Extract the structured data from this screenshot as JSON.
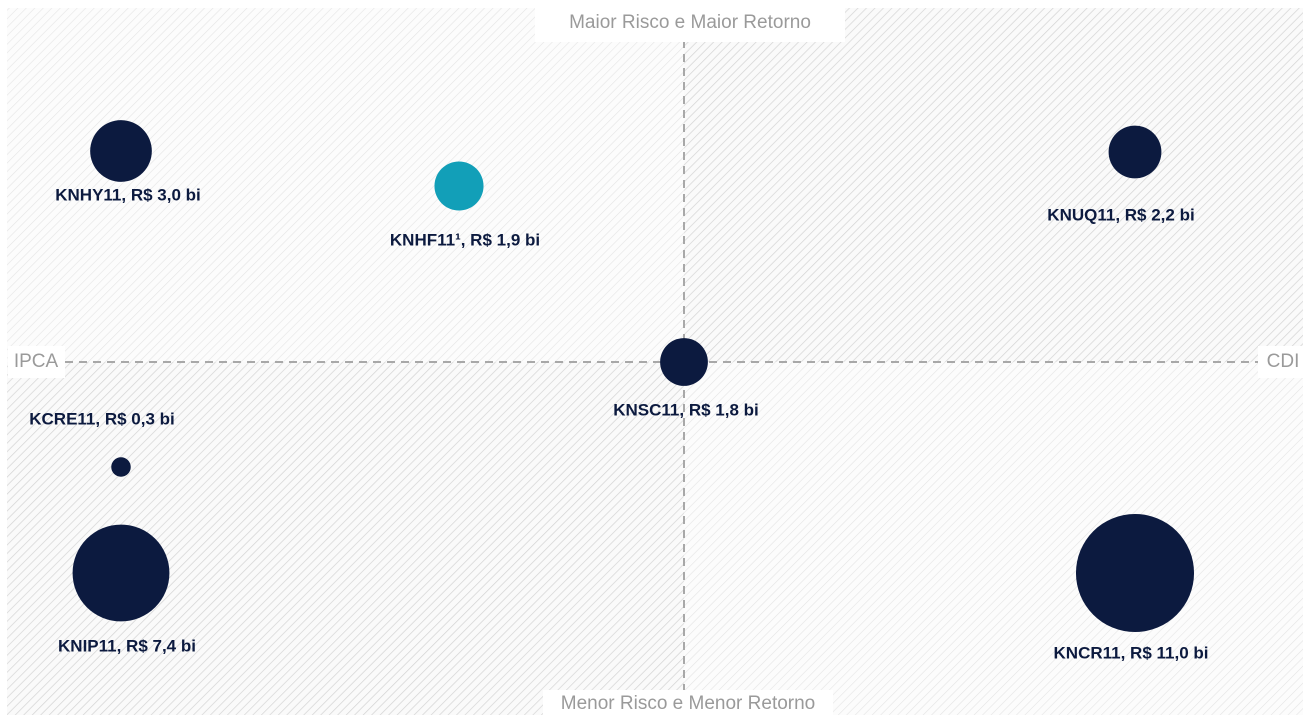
{
  "chart_data": {
    "type": "bubble",
    "quadrant_labels": {
      "top": "Maior Risco e Maior Retorno",
      "bottom": "Menor Risco e Menor Retorno",
      "left": "IPCA",
      "right": "CDI"
    },
    "labels": [
      "KNHY11, R$ 3,0 bi",
      "KNHF11¹, R$ 1,9 bi",
      "KNUQ11, R$ 2,2 bi",
      "KNSC11, R$ 1,8 bi",
      "KCRE11, R$ 0,3 bi",
      "KNIP11, R$ 7,4 bi",
      "KNCR11, R$ 11,0 bi"
    ],
    "values": [
      3.0,
      1.9,
      2.2,
      1.8,
      0.3,
      7.4,
      11.0
    ],
    "colors": [
      "#0c1a3f",
      "#129fb8",
      "#0c1a3f",
      "#0c1a3f",
      "#0c1a3f",
      "#0c1a3f",
      "#0c1a3f"
    ]
  }
}
